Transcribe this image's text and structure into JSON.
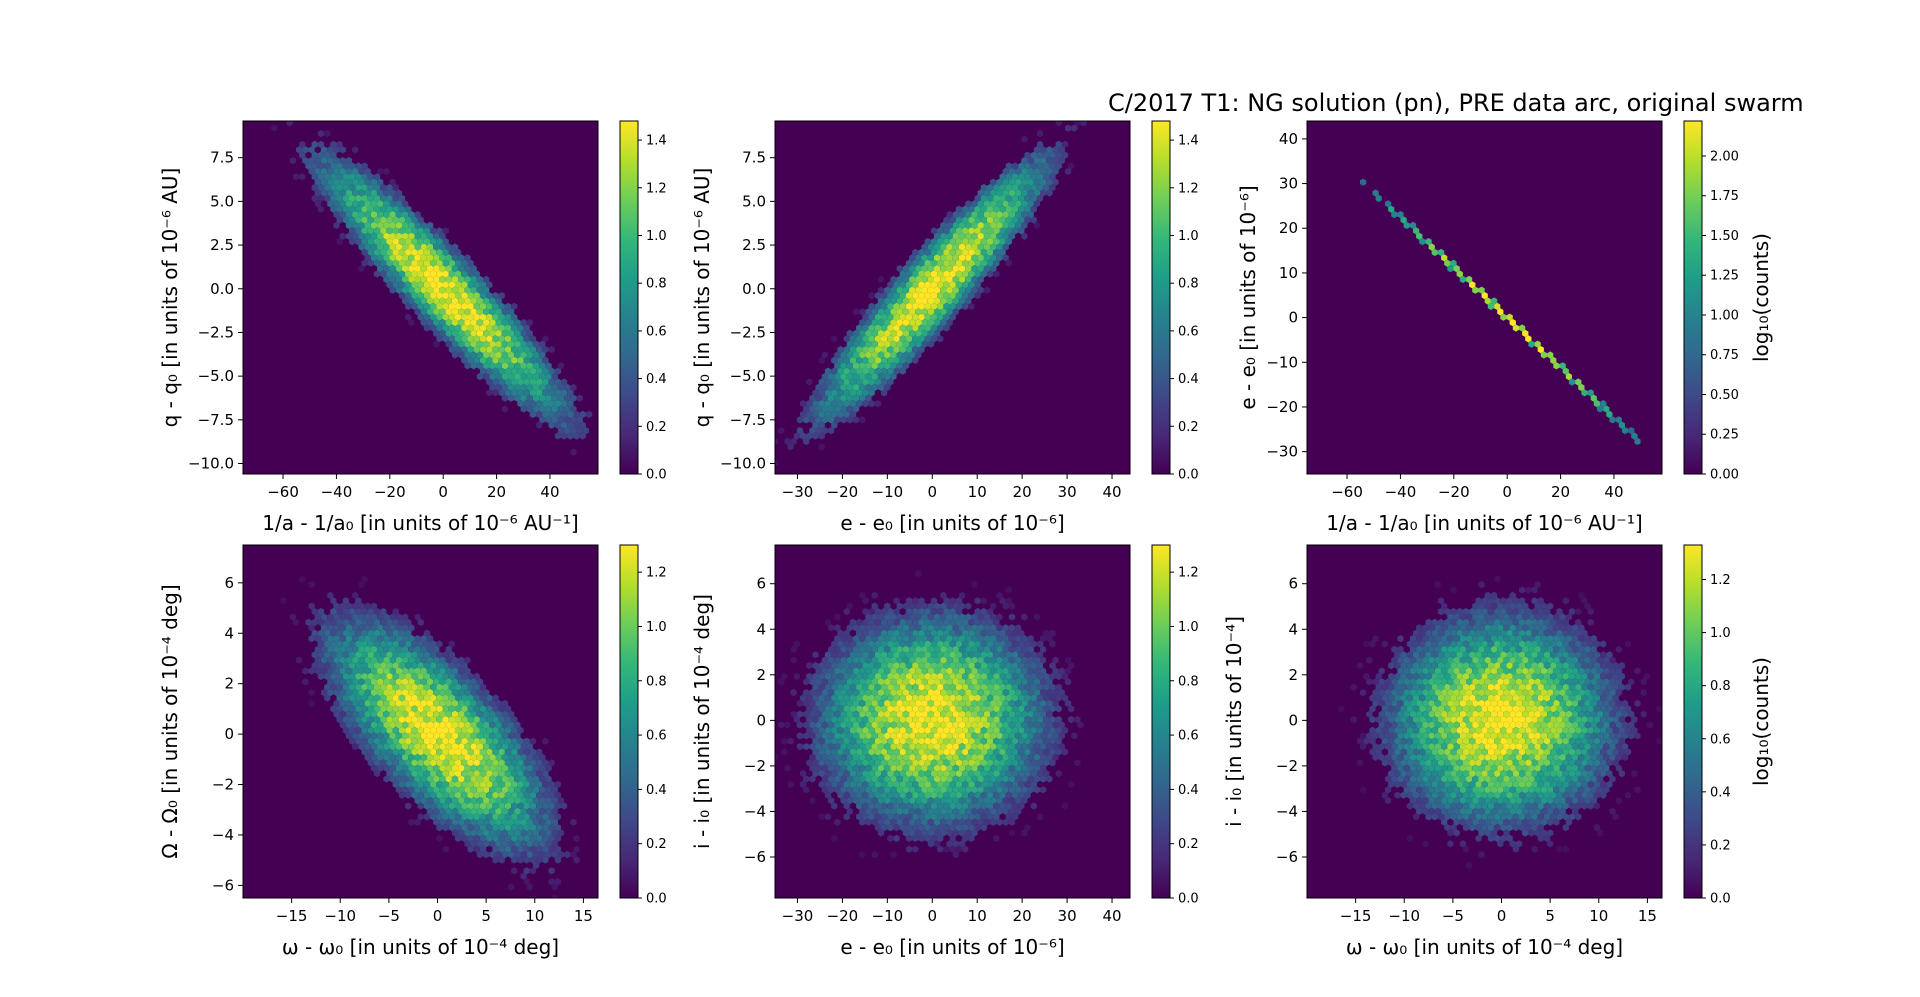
{
  "figure": {
    "title": "C/2017 T1: NG solution (pn), PRE data arc,  original swarm"
  },
  "colors": {
    "viridis": [
      "#440154",
      "#482878",
      "#3e4989",
      "#31688e",
      "#26828e",
      "#1f9e89",
      "#35b779",
      "#6ece58",
      "#b5de2b",
      "#fde725"
    ],
    "background": "#440154"
  },
  "chart_data": [
    {
      "type": "heatmap",
      "subtype": "hexbin",
      "xlabel": "1/a - 1/a₀ [in units of 10⁻⁶ AU⁻¹]",
      "ylabel": "q - q₀ [in units of 10⁻⁶ AU]",
      "xlim": [
        -75,
        58
      ],
      "ylim": [
        -10.6,
        9.6
      ],
      "xticks": [
        -60,
        -40,
        -20,
        0,
        20,
        40
      ],
      "xticklabels": [
        "−60",
        "−40",
        "−20",
        "0",
        "20",
        "40"
      ],
      "yticks": [
        -10,
        -7.5,
        -5,
        -2.5,
        0,
        2.5,
        5,
        7.5
      ],
      "yticklabels": [
        "−10.0",
        "−7.5",
        "−5.0",
        "−2.5",
        "0.0",
        "2.5",
        "5.0",
        "7.5"
      ],
      "colorbar": {
        "ticks": [
          0,
          0.2,
          0.4,
          0.6,
          0.8,
          1.0,
          1.2,
          1.4
        ],
        "ticklabels": [
          "0.0",
          "0.2",
          "0.4",
          "0.6",
          "0.8",
          "1.0",
          "1.2",
          "1.4"
        ],
        "vmax": 1.48,
        "label": ""
      },
      "distribution": {
        "x_mean": 0,
        "x_sd": 20,
        "y_sd": 3.2,
        "correlation": -0.93,
        "peak_log10_counts": 1.48
      }
    },
    {
      "type": "heatmap",
      "subtype": "hexbin",
      "xlabel": "e - e₀ [in units of 10⁻⁶]",
      "ylabel": "q - q₀ [in units of 10⁻⁶ AU]",
      "xlim": [
        -35,
        44
      ],
      "ylim": [
        -10.6,
        9.6
      ],
      "xticks": [
        -30,
        -20,
        -10,
        0,
        10,
        20,
        30,
        40
      ],
      "xticklabels": [
        "−30",
        "−20",
        "−10",
        "0",
        "10",
        "20",
        "30",
        "40"
      ],
      "yticks": [
        -10,
        -7.5,
        -5,
        -2.5,
        0,
        2.5,
        5,
        7.5
      ],
      "yticklabels": [
        "−10.0",
        "−7.5",
        "−5.0",
        "−2.5",
        "0.0",
        "2.5",
        "5.0",
        "7.5"
      ],
      "colorbar": {
        "ticks": [
          0,
          0.2,
          0.4,
          0.6,
          0.8,
          1.0,
          1.2,
          1.4
        ],
        "ticklabels": [
          "0.0",
          "0.2",
          "0.4",
          "0.6",
          "0.8",
          "1.0",
          "1.2",
          "1.4"
        ],
        "vmax": 1.48,
        "label": ""
      },
      "distribution": {
        "x_mean": 0,
        "x_sd": 11,
        "y_sd": 3.2,
        "correlation": 0.93,
        "peak_log10_counts": 1.48
      }
    },
    {
      "type": "heatmap",
      "subtype": "hexbin",
      "xlabel": "1/a - 1/a₀ [in units of 10⁻⁶ AU⁻¹]",
      "ylabel": "e - e₀ [in units of 10⁻⁶]",
      "xlim": [
        -75,
        58
      ],
      "ylim": [
        -35,
        44
      ],
      "xticks": [
        -60,
        -40,
        -20,
        0,
        20,
        40
      ],
      "xticklabels": [
        "−60",
        "−40",
        "−20",
        "0",
        "20",
        "40"
      ],
      "yticks": [
        -30,
        -20,
        -10,
        0,
        10,
        20,
        30,
        40
      ],
      "yticklabels": [
        "−30",
        "−20",
        "−10",
        "0",
        "10",
        "20",
        "30",
        "40"
      ],
      "colorbar": {
        "ticks": [
          0,
          0.25,
          0.5,
          0.75,
          1.0,
          1.25,
          1.5,
          1.75,
          2.0
        ],
        "ticklabels": [
          "0.00",
          "0.25",
          "0.50",
          "0.75",
          "1.00",
          "1.25",
          "1.50",
          "1.75",
          "2.00"
        ],
        "vmax": 2.22,
        "label": "log₁₀(counts)"
      },
      "distribution": {
        "x_mean": 0,
        "x_sd": 20,
        "relation": "e - e0 = -0.56 * (1/a - 1/a0)",
        "peak_log10_counts": 2.22
      }
    },
    {
      "type": "heatmap",
      "subtype": "hexbin",
      "xlabel": "ω - ω₀ [in units of 10⁻⁴ deg]",
      "ylabel": "Ω - Ω₀ [in units of 10⁻⁴ deg]",
      "xlim": [
        -20,
        16.5
      ],
      "ylim": [
        -6.5,
        7.5
      ],
      "xticks": [
        -15,
        -10,
        -5,
        0,
        5,
        10,
        15
      ],
      "xticklabels": [
        "−15",
        "−10",
        "−5",
        "0",
        "5",
        "10",
        "15"
      ],
      "yticks": [
        -6,
        -4,
        -2,
        0,
        2,
        4,
        6
      ],
      "yticklabels": [
        "−6",
        "−4",
        "−2",
        "0",
        "2",
        "4",
        "6"
      ],
      "colorbar": {
        "ticks": [
          0,
          0.2,
          0.4,
          0.6,
          0.8,
          1.0,
          1.2
        ],
        "ticklabels": [
          "0.0",
          "0.2",
          "0.4",
          "0.6",
          "0.8",
          "1.0",
          "1.2"
        ],
        "vmax": 1.3,
        "label": ""
      },
      "distribution": {
        "x_mean": 0,
        "x_sd": 5,
        "y_sd": 2.0,
        "correlation": -0.72,
        "peak_log10_counts": 1.3
      }
    },
    {
      "type": "heatmap",
      "subtype": "hexbin",
      "xlabel": "e - e₀ [in units of 10⁻⁶]",
      "ylabel": "i - i₀ [in units of 10⁻⁴ deg]",
      "xlim": [
        -35,
        44
      ],
      "ylim": [
        -7.8,
        7.7
      ],
      "xticks": [
        -30,
        -20,
        -10,
        0,
        10,
        20,
        30,
        40
      ],
      "xticklabels": [
        "−30",
        "−20",
        "−10",
        "0",
        "10",
        "20",
        "30",
        "40"
      ],
      "yticks": [
        -6,
        -4,
        -2,
        0,
        2,
        4,
        6
      ],
      "yticklabels": [
        "−6",
        "−4",
        "−2",
        "0",
        "2",
        "4",
        "6"
      ],
      "colorbar": {
        "ticks": [
          0,
          0.2,
          0.4,
          0.6,
          0.8,
          1.0,
          1.2
        ],
        "ticklabels": [
          "0.0",
          "0.2",
          "0.4",
          "0.6",
          "0.8",
          "1.0",
          "1.2"
        ],
        "vmax": 1.3,
        "label": ""
      },
      "distribution": {
        "x_mean": 0,
        "x_sd": 11,
        "y_sd": 2.0,
        "correlation": 0.0,
        "peak_log10_counts": 1.3
      }
    },
    {
      "type": "heatmap",
      "subtype": "hexbin",
      "xlabel": "ω - ω₀ [in units of 10⁻⁴ deg]",
      "ylabel": "i - i₀ [in units of 10⁻⁴]",
      "xlim": [
        -20,
        16.5
      ],
      "ylim": [
        -7.8,
        7.7
      ],
      "xticks": [
        -15,
        -10,
        -5,
        0,
        5,
        10,
        15
      ],
      "xticklabels": [
        "−15",
        "−10",
        "−5",
        "0",
        "5",
        "10",
        "15"
      ],
      "yticks": [
        -6,
        -4,
        -2,
        0,
        2,
        4,
        6
      ],
      "yticklabels": [
        "−6",
        "−4",
        "−2",
        "0",
        "2",
        "4",
        "6"
      ],
      "colorbar": {
        "ticks": [
          0,
          0.2,
          0.4,
          0.6,
          0.8,
          1.0,
          1.2
        ],
        "ticklabels": [
          "0.0",
          "0.2",
          "0.4",
          "0.6",
          "0.8",
          "1.0",
          "1.2"
        ],
        "vmax": 1.33,
        "label": "log₁₀(counts)"
      },
      "distribution": {
        "x_mean": 0,
        "x_sd": 5,
        "y_sd": 2.0,
        "correlation": 0.0,
        "peak_log10_counts": 1.33
      }
    }
  ]
}
